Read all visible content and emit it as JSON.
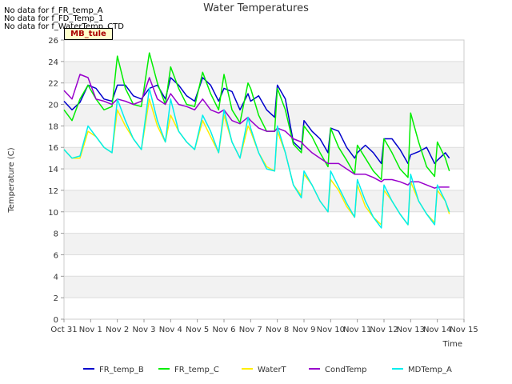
{
  "no_data_notes": [
    "No data for f_FR_temp_A",
    "No data for f_FD_Temp_1",
    "No data for f_WaterTemp_CTD"
  ],
  "badge": "MB_tule",
  "chart_data": {
    "type": "line",
    "title": "Water Temperatures",
    "xlabel": "Time",
    "ylabel": "Temperature (C)",
    "xlim": [
      0,
      15
    ],
    "ylim": [
      0,
      26
    ],
    "x_ticks": [
      0,
      1,
      2,
      3,
      4,
      5,
      6,
      7,
      8,
      9,
      10,
      11,
      12,
      13,
      14,
      15
    ],
    "x_tick_labels": [
      "Oct 31",
      "Nov 1",
      "Nov 2",
      "Nov 3",
      "Nov 4",
      "Nov 5",
      "Nov 6",
      "Nov 7",
      "Nov 8",
      "Nov 9",
      "Nov 10",
      "Nov 11",
      "Nov 12",
      "Nov 13",
      "Nov 14",
      "Nov 15"
    ],
    "y_ticks": [
      0,
      2,
      4,
      6,
      8,
      10,
      12,
      14,
      16,
      18,
      20,
      22,
      24,
      26
    ],
    "grid": "alternating horizontal bands",
    "legend_position": "bottom",
    "colors": {
      "FR_temp_B": "#0000cc",
      "FR_temp_C": "#00ee00",
      "WaterT": "#ffee00",
      "CondTemp": "#9900cc",
      "MDTemp_A": "#00eeee"
    },
    "series": [
      {
        "name": "FR_temp_B",
        "color": "#0000cc",
        "x": [
          0,
          0.3,
          0.6,
          0.9,
          1.2,
          1.5,
          1.8,
          2.0,
          2.3,
          2.6,
          2.9,
          3.2,
          3.5,
          3.8,
          4.0,
          4.3,
          4.6,
          4.9,
          5.2,
          5.5,
          5.8,
          6.0,
          6.3,
          6.6,
          6.9,
          7.0,
          7.3,
          7.6,
          7.9,
          8.0,
          8.3,
          8.6,
          8.9,
          9.0,
          9.3,
          9.6,
          9.9,
          10.0,
          10.3,
          10.6,
          10.9,
          11.0,
          11.3,
          11.6,
          11.9,
          12.0,
          12.3,
          12.6,
          12.9,
          13.0,
          13.3,
          13.6,
          13.9,
          14.0,
          14.3,
          14.45
        ],
        "y": [
          20.3,
          19.5,
          20.2,
          21.8,
          21.5,
          20.5,
          20.3,
          21.8,
          21.8,
          20.8,
          20.5,
          21.5,
          21.8,
          20.5,
          22.5,
          21.8,
          20.8,
          20.3,
          22.5,
          21.8,
          20.3,
          21.5,
          21.2,
          19.5,
          21.0,
          20.3,
          20.8,
          19.5,
          18.8,
          21.8,
          20.5,
          16.5,
          15.8,
          18.5,
          17.5,
          16.8,
          15.5,
          17.8,
          17.5,
          16.0,
          15.0,
          15.5,
          16.2,
          15.5,
          14.5,
          16.8,
          16.8,
          15.8,
          14.5,
          15.3,
          15.6,
          16.0,
          14.5,
          14.8,
          15.5,
          15.0
        ]
      },
      {
        "name": "FR_temp_C",
        "color": "#00ee00",
        "x": [
          0,
          0.3,
          0.6,
          0.9,
          1.2,
          1.5,
          1.8,
          2.0,
          2.3,
          2.6,
          2.9,
          3.2,
          3.5,
          3.8,
          4.0,
          4.3,
          4.6,
          4.9,
          5.2,
          5.5,
          5.8,
          6.0,
          6.3,
          6.6,
          6.9,
          7.0,
          7.3,
          7.6,
          7.9,
          8.0,
          8.3,
          8.6,
          8.9,
          9.0,
          9.3,
          9.6,
          9.9,
          10.0,
          10.3,
          10.6,
          10.9,
          11.0,
          11.3,
          11.6,
          11.9,
          12.0,
          12.3,
          12.6,
          12.9,
          13.0,
          13.3,
          13.6,
          13.9,
          14.0,
          14.3,
          14.45
        ],
        "y": [
          19.5,
          18.5,
          20.5,
          21.8,
          20.5,
          19.5,
          19.8,
          24.5,
          21.5,
          20.0,
          19.8,
          24.8,
          22.0,
          20.0,
          23.5,
          21.5,
          20.0,
          19.8,
          23.0,
          21.0,
          19.5,
          22.8,
          19.5,
          18.3,
          22.0,
          21.5,
          19.0,
          17.5,
          17.5,
          21.5,
          19.5,
          16.3,
          15.5,
          18.0,
          17.0,
          15.5,
          14.2,
          17.8,
          16.0,
          14.8,
          13.5,
          16.2,
          15.0,
          13.8,
          13.0,
          16.8,
          15.5,
          14.0,
          13.2,
          19.2,
          16.5,
          14.2,
          13.3,
          16.5,
          15.0,
          13.8
        ]
      },
      {
        "name": "WaterT",
        "color": "#ffee00",
        "x": [
          0,
          0.3,
          0.6,
          0.9,
          1.2,
          1.5,
          1.8,
          2.0,
          2.3,
          2.6,
          2.9,
          3.2,
          3.5,
          3.8,
          4.0,
          4.3,
          4.6,
          4.9,
          5.2,
          5.5,
          5.8,
          6.0,
          6.3,
          6.6,
          6.9,
          7.0,
          7.3,
          7.6,
          7.9,
          8.0,
          8.3,
          8.6,
          8.9,
          9.0,
          9.3,
          9.6,
          9.9,
          10.0,
          10.3,
          10.6,
          10.9,
          11.0,
          11.3,
          11.6,
          11.9,
          12.0,
          12.3,
          12.6,
          12.9,
          13.0,
          13.3,
          13.6,
          13.9,
          14.0,
          14.3,
          14.45
        ],
        "y": [
          15.8,
          15.0,
          15.0,
          17.5,
          17.0,
          16.0,
          15.5,
          19.5,
          18.0,
          16.8,
          15.8,
          20.5,
          18.0,
          16.5,
          19.0,
          17.5,
          16.5,
          15.8,
          18.5,
          17.0,
          15.5,
          19.0,
          16.5,
          15.0,
          18.0,
          17.5,
          15.5,
          14.2,
          13.8,
          17.5,
          15.5,
          12.5,
          11.5,
          13.5,
          12.5,
          11.0,
          10.0,
          13.0,
          12.0,
          10.5,
          9.5,
          12.5,
          10.5,
          9.5,
          8.8,
          12.0,
          11.0,
          9.8,
          8.8,
          12.8,
          11.0,
          9.8,
          9.0,
          12.0,
          11.0,
          9.8
        ]
      },
      {
        "name": "CondTemp",
        "color": "#9900cc",
        "x": [
          0,
          0.3,
          0.6,
          0.9,
          1.2,
          1.5,
          1.8,
          2.0,
          2.3,
          2.6,
          2.9,
          3.2,
          3.5,
          3.8,
          4.0,
          4.3,
          4.6,
          4.9,
          5.2,
          5.5,
          5.8,
          6.0,
          6.3,
          6.6,
          6.9,
          7.0,
          7.3,
          7.6,
          7.9,
          8.0,
          8.3,
          8.6,
          8.9,
          9.0,
          9.3,
          9.6,
          9.9,
          10.0,
          10.3,
          10.6,
          10.9,
          11.0,
          11.3,
          11.6,
          11.9,
          12.0,
          12.3,
          12.6,
          12.9,
          13.0,
          13.3,
          13.6,
          13.9,
          14.0,
          14.3,
          14.45
        ],
        "y": [
          21.3,
          20.5,
          22.8,
          22.5,
          20.5,
          20.3,
          20.0,
          20.5,
          20.3,
          20.0,
          20.3,
          22.5,
          20.5,
          20.0,
          21.0,
          20.0,
          19.8,
          19.5,
          20.5,
          19.5,
          19.2,
          19.5,
          18.5,
          18.2,
          18.8,
          18.5,
          17.8,
          17.5,
          17.5,
          17.8,
          17.5,
          16.8,
          16.5,
          16.2,
          15.5,
          15.0,
          14.5,
          14.5,
          14.5,
          14.0,
          13.5,
          13.5,
          13.5,
          13.2,
          12.8,
          13.0,
          13.0,
          12.8,
          12.5,
          12.8,
          12.8,
          12.5,
          12.2,
          12.3,
          12.3,
          12.3
        ]
      },
      {
        "name": "MDTemp_A",
        "color": "#00eeee",
        "x": [
          0,
          0.3,
          0.6,
          0.9,
          1.2,
          1.5,
          1.8,
          2.0,
          2.3,
          2.6,
          2.9,
          3.2,
          3.5,
          3.8,
          4.0,
          4.3,
          4.6,
          4.9,
          5.2,
          5.5,
          5.8,
          6.0,
          6.3,
          6.6,
          6.9,
          7.0,
          7.3,
          7.6,
          7.9,
          8.0,
          8.3,
          8.6,
          8.9,
          9.0,
          9.3,
          9.6,
          9.9,
          10.0,
          10.3,
          10.6,
          10.9,
          11.0,
          11.3,
          11.6,
          11.9,
          12.0,
          12.3,
          12.6,
          12.9,
          13.0,
          13.3,
          13.6,
          13.9,
          14.0,
          14.3,
          14.45
        ],
        "y": [
          15.8,
          15.0,
          15.2,
          18.0,
          17.0,
          16.0,
          15.5,
          20.5,
          18.5,
          16.8,
          15.8,
          21.5,
          18.5,
          16.5,
          20.5,
          17.5,
          16.5,
          15.8,
          19.0,
          17.5,
          15.5,
          19.5,
          16.5,
          15.0,
          18.8,
          17.8,
          15.5,
          14.0,
          13.8,
          18.0,
          15.5,
          12.5,
          11.3,
          13.8,
          12.5,
          11.0,
          10.0,
          13.8,
          12.3,
          10.8,
          9.5,
          13.0,
          11.0,
          9.5,
          8.5,
          12.5,
          11.0,
          9.8,
          8.8,
          13.5,
          11.0,
          9.8,
          8.8,
          12.5,
          11.0,
          10.0
        ]
      }
    ]
  }
}
